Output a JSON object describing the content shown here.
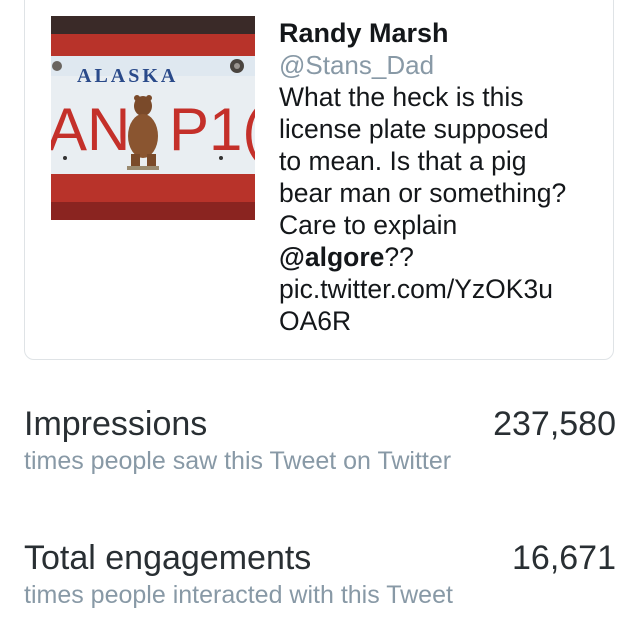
{
  "tweet": {
    "author_name": "Randy Marsh",
    "author_handle": "@Stans_Dad",
    "text_lines": [
      "What the heck is this",
      "license plate supposed",
      "to mean. Is that a pig",
      "bear man or something?",
      "Care to explain"
    ],
    "mention": "@algore",
    "mention_suffix": "??",
    "link_lines": [
      "pic.twitter.com/YzOK3u",
      "OA6R"
    ],
    "media": {
      "plate_state": "ALASKA",
      "plate_text_left": "AN",
      "plate_text_right": "P1(",
      "icon": "bear-license-plate-photo"
    }
  },
  "metrics": [
    {
      "label": "Impressions",
      "value": "237,580",
      "description": "times people saw this Tweet on Twitter"
    },
    {
      "label": "Total engagements",
      "value": "16,671",
      "description": "times people interacted with this Tweet"
    }
  ],
  "colors": {
    "text": "#14171a",
    "secondary": "#8899a6",
    "border": "#dfe3e6"
  }
}
